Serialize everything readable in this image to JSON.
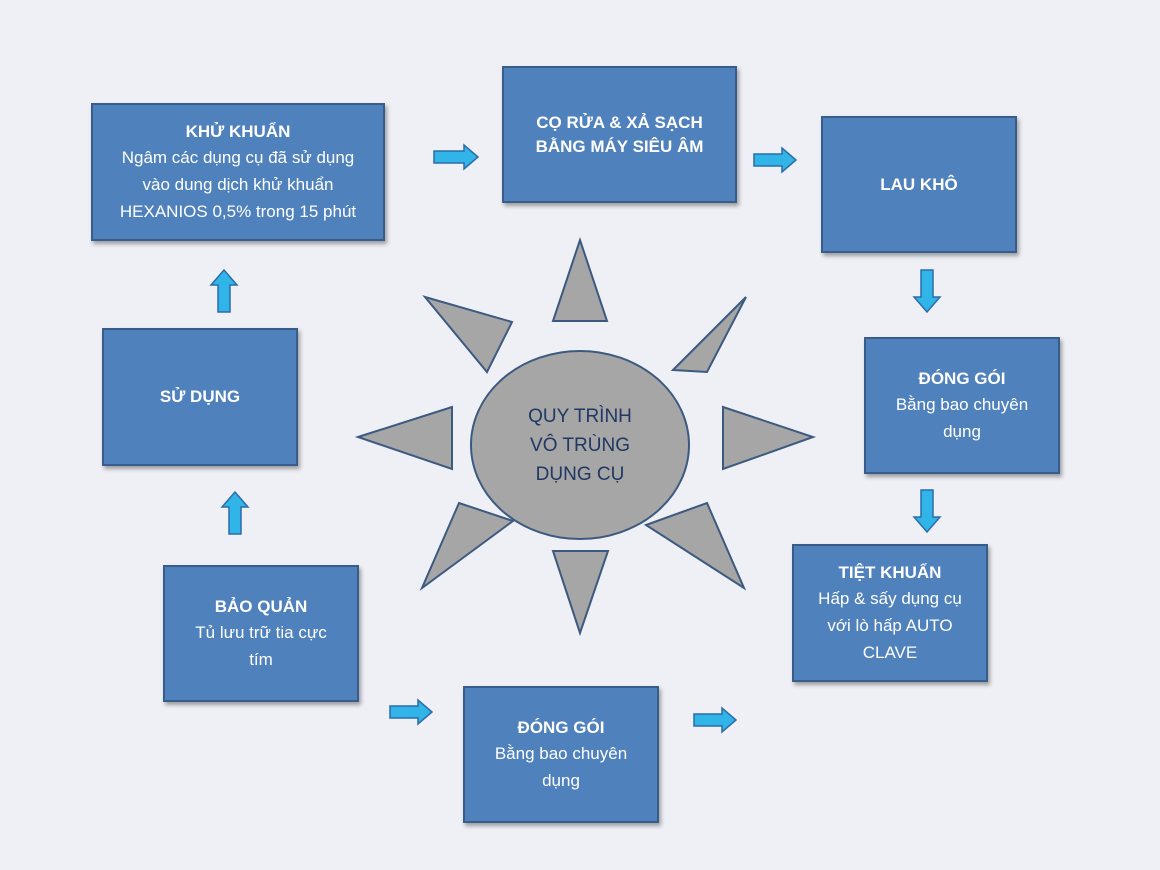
{
  "center": {
    "lines": [
      "QUY TRÌNH",
      "VÔ TRÙNG",
      "DỤNG CỤ"
    ],
    "fill": "#a6a6a6"
  },
  "colors": {
    "box_fill": "#4f81bd",
    "box_border": "#385d8a",
    "arrow_fill": "#31b4e8",
    "arrow_stroke": "#2c6da8",
    "sun_ray_fill": "#a6a6a6",
    "background": "#eff0f5"
  },
  "steps": {
    "khu_khuan": {
      "title": "KHỬ KHUẨN",
      "lines": [
        "Ngâm các dụng cụ đã sử dụng",
        "vào dung dịch khử khuẩn",
        "HEXANIOS 0,5% trong 15 phút"
      ]
    },
    "co_rua": {
      "lines": [
        "CỌ RỬA & XẢ SẠCH",
        "BẰNG MÁY SIÊU ÂM"
      ]
    },
    "lau_kho": {
      "title": "LAU KHÔ"
    },
    "dong_goi_right": {
      "title": "ĐÓNG GÓI",
      "lines": [
        "Bằng bao chuyên",
        "dụng"
      ]
    },
    "tiet_khuan": {
      "title": "TIỆT KHUẨN",
      "lines": [
        "Hấp & sấy dụng cụ",
        "với lò hấp AUTO",
        "CLAVE"
      ]
    },
    "dong_goi_bottom": {
      "title": "ĐÓNG GÓI",
      "lines": [
        "Bằng bao chuyên",
        "dụng"
      ]
    },
    "bao_quan": {
      "title": "BẢO QUẢN",
      "lines": [
        "Tủ lưu trữ tia cực",
        "tím"
      ]
    },
    "su_dung": {
      "title": "SỬ DỤNG"
    }
  }
}
